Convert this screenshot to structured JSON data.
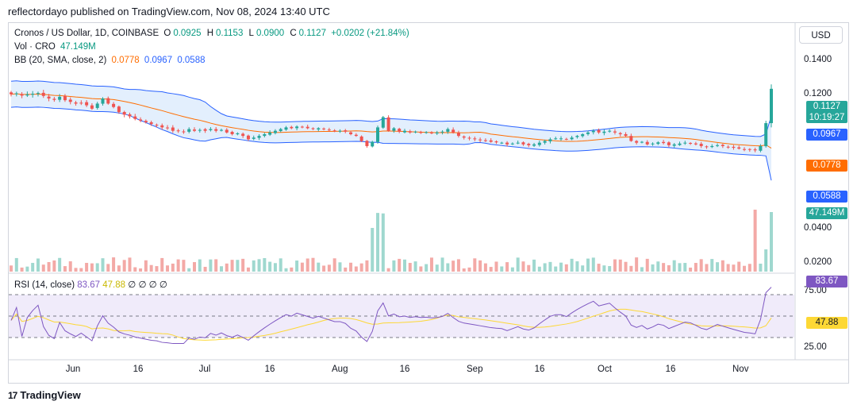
{
  "header": {
    "published": "reflectordayo published on TradingView.com, Nov 08, 2024 13:40 UTC"
  },
  "legend": {
    "symbol": "Cronos / US Dollar, 1D, COINBASE",
    "o_label": "O",
    "o_value": "0.0925",
    "h_label": "H",
    "h_value": "0.1153",
    "l_label": "L",
    "l_value": "0.0900",
    "c_label": "C",
    "c_value": "0.1127",
    "change": "+0.0202 (+21.84%)",
    "vol_label": "Vol · CRO",
    "vol_value": "47.149M",
    "bb_label": "BB (20, SMA, close, 2)",
    "bb_basis": "0.0778",
    "bb_upper": "0.0967",
    "bb_lower": "0.0588",
    "rsi_label": "RSI (14, close)",
    "rsi_value": "83.67",
    "rsi_ma": "47.88",
    "rsi_extra": "∅ ∅ ∅ ∅"
  },
  "currency_button": "USD",
  "price_axis": [
    "0.1400",
    "0.1200",
    "0.0400",
    "0.0200"
  ],
  "price_tags": {
    "last": "0.1127",
    "countdown": "10:19:27",
    "upper": "0.0967",
    "basis": "0.0778",
    "lower": "0.0588",
    "volume": "47.149M"
  },
  "rsi_axis": [
    "75.00",
    "25.00"
  ],
  "rsi_tags": {
    "rsi": "83.67",
    "ma": "47.88"
  },
  "time_axis": [
    "Jun",
    "16",
    "Jul",
    "16",
    "Aug",
    "16",
    "Sep",
    "16",
    "Oct",
    "16",
    "Nov"
  ],
  "footer": {
    "brand": "TradingView",
    "logo": "17"
  },
  "colors": {
    "up": "#26a69a",
    "down": "#ef5350",
    "bb_band": "#2962ff",
    "bb_basis": "#ff6d00",
    "bb_fill": "#e3effd",
    "rsi_line": "#7e57c2",
    "rsi_ma": "#fdd835",
    "rsi_bg": "#f0ebfa"
  },
  "chart_data": {
    "type": "candlestick",
    "title": "Cronos / US Dollar, 1D, COINBASE",
    "x_labels": [
      "Jun",
      "16",
      "Jul",
      "16",
      "Aug",
      "16",
      "Sep",
      "16",
      "Oct",
      "16",
      "Nov"
    ],
    "close": [
      0.1095,
      0.11,
      0.1087,
      0.1094,
      0.1098,
      0.1102,
      0.1085,
      0.107,
      0.1062,
      0.108,
      0.106,
      0.105,
      0.104,
      0.1045,
      0.103,
      0.101,
      0.104,
      0.107,
      0.104,
      0.102,
      0.099,
      0.0975,
      0.0965,
      0.095,
      0.094,
      0.093,
      0.092,
      0.0915,
      0.09,
      0.0895,
      0.088,
      0.0878,
      0.0875,
      0.089,
      0.088,
      0.0885,
      0.088,
      0.089,
      0.088,
      0.0885,
      0.087,
      0.086,
      0.0865,
      0.085,
      0.083,
      0.084,
      0.085,
      0.086,
      0.087,
      0.088,
      0.089,
      0.09,
      0.0895,
      0.0905,
      0.09,
      0.0895,
      0.089,
      0.0895,
      0.089,
      0.0885,
      0.088,
      0.088,
      0.0875,
      0.086,
      0.085,
      0.082,
      0.079,
      0.0815,
      0.09,
      0.096,
      0.088,
      0.0895,
      0.0875,
      0.088,
      0.087,
      0.0875,
      0.087,
      0.0872,
      0.0868,
      0.087,
      0.0875,
      0.089,
      0.087,
      0.085,
      0.084,
      0.0835,
      0.083,
      0.0825,
      0.082,
      0.0815,
      0.0812,
      0.081,
      0.08,
      0.0805,
      0.081,
      0.08,
      0.0795,
      0.08,
      0.081,
      0.082,
      0.083,
      0.0835,
      0.0835,
      0.083,
      0.084,
      0.085,
      0.086,
      0.087,
      0.088,
      0.087,
      0.0875,
      0.088,
      0.087,
      0.086,
      0.085,
      0.082,
      0.081,
      0.0815,
      0.08,
      0.0805,
      0.0812,
      0.0808,
      0.0795,
      0.08,
      0.0805,
      0.081,
      0.0808,
      0.08,
      0.079,
      0.0785,
      0.079,
      0.0795,
      0.079,
      0.0785,
      0.078,
      0.0775,
      0.077,
      0.0768,
      0.0765,
      0.079,
      0.0925,
      0.1127
    ],
    "bb_basis_last": 0.0778,
    "bb_upper_last": 0.0967,
    "bb_lower_last": 0.0588,
    "volume_last": "47.149M",
    "rsi_last": 83.67,
    "rsi_ma_last": 47.88,
    "ylim": [
      0.05,
      0.15
    ],
    "rsi_levels": [
      75,
      50,
      25
    ]
  }
}
